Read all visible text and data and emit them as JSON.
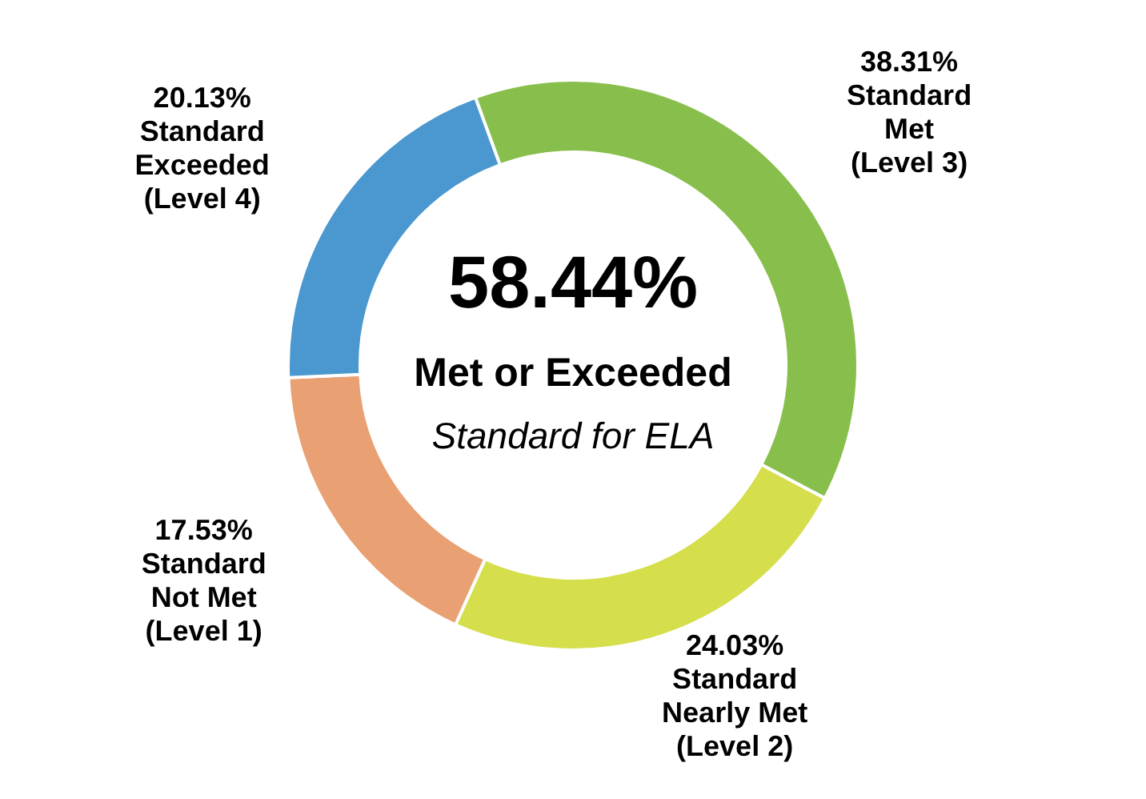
{
  "chart_data": {
    "type": "donut",
    "categories": [
      "Standard Met (Level 3)",
      "Standard Nearly Met (Level 2)",
      "Standard Not Met (Level 1)",
      "Standard Exceeded (Level 4)"
    ],
    "values": [
      38.31,
      24.03,
      17.53,
      20.13
    ],
    "colors": [
      "#88bf4c",
      "#d5de4b",
      "#e9a072",
      "#4a98cf"
    ],
    "value_labels": [
      "38.31%",
      "24.03%",
      "17.53%",
      "20.13%"
    ],
    "annotations": [
      "58.44%",
      "Met or Exceeded",
      "Standard for ELA"
    ]
  }
}
